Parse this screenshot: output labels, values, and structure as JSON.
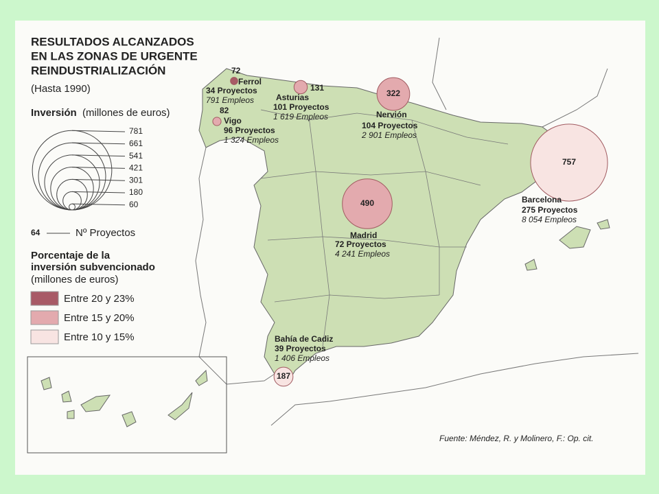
{
  "title": [
    "RESULTADOS ALCANZADOS",
    "EN LAS ZONAS DE URGENTE",
    "REINDUSTRIALIZACIÓN"
  ],
  "subtitle": "(Hasta 1990)",
  "legend": {
    "investment_title": "Inversión",
    "investment_unit": "(millones de euros)",
    "sizes": [
      781,
      661,
      541,
      421,
      301,
      180,
      60
    ],
    "projects_sample": "64",
    "projects_label": "Nº Proyectos",
    "percentage_title": [
      "Porcentaje de la",
      "inversión subvencionado"
    ],
    "percentage_unit": "(millones de euros)",
    "classes": [
      {
        "label": "Entre 20 y 23%",
        "color": "#a85a66"
      },
      {
        "label": "Entre 15 y 20%",
        "color": "#e3aaae"
      },
      {
        "label": "Entre 10 y 15%",
        "color": "#f8e4e2"
      }
    ]
  },
  "zones": [
    {
      "name": "Ferrol",
      "investment": 72,
      "projects": "34 Proyectos",
      "jobs": "791 Empleos",
      "color": "#a85a66"
    },
    {
      "name": "Vigo",
      "investment": 82,
      "projects": "96 Proyectos",
      "jobs": "1 324 Empleos",
      "color": "#e3aaae"
    },
    {
      "name": "Asturias",
      "investment": 131,
      "projects": "101 Proyectos",
      "jobs": "1 619 Empleos",
      "color": "#e3aaae"
    },
    {
      "name": "Nervión",
      "investment": 322,
      "projects": "104 Proyectos",
      "jobs": "2 901 Empleos",
      "color": "#e3aaae"
    },
    {
      "name": "Madrid",
      "investment": 490,
      "projects": "72 Proyectos",
      "jobs": "4 241 Empleos",
      "color": "#e3aaae"
    },
    {
      "name": "Barcelona",
      "investment": 757,
      "projects": "275 Proyectos",
      "jobs": "8 054 Empleos",
      "color": "#f8e4e2"
    },
    {
      "name": "Bahía de Cadiz",
      "investment": 187,
      "projects": "39 Proyectos",
      "jobs": "1 406 Empleos",
      "color": "#f8e4e2"
    }
  ],
  "source": "Fuente: Méndez, R. y Molinero, F.: Op. cit."
}
